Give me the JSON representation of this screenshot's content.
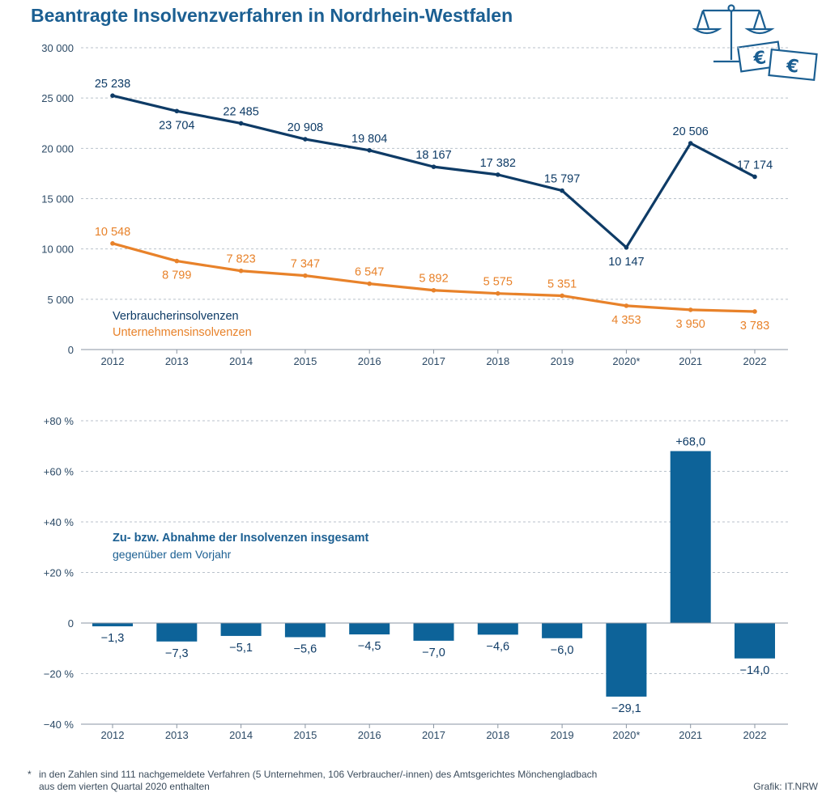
{
  "title": "Beantragte Insolvenzverfahren in Nordrhein-Westfalen",
  "chart_data": [
    {
      "type": "line",
      "x": [
        "2012",
        "2013",
        "2014",
        "2015",
        "2016",
        "2017",
        "2018",
        "2019",
        "2020*",
        "2021",
        "2022"
      ],
      "ylim": [
        0,
        30000
      ],
      "yticks": [
        {
          "value": 0,
          "label": "0"
        },
        {
          "value": 5000,
          "label": "5 000"
        },
        {
          "value": 10000,
          "label": "10 000"
        },
        {
          "value": 15000,
          "label": "15 000"
        },
        {
          "value": 20000,
          "label": "20 000"
        },
        {
          "value": 25000,
          "label": "25 000"
        },
        {
          "value": 30000,
          "label": "30 000"
        }
      ],
      "grid": true,
      "legend": "bottom-left",
      "series": [
        {
          "name": "Verbraucherinsolvenzen",
          "color": "#0e3b66",
          "values": [
            25238,
            23704,
            22485,
            20908,
            19804,
            18167,
            17382,
            15797,
            10147,
            20506,
            17174
          ],
          "labels": [
            "25 238",
            "23 704",
            "22 485",
            "20 908",
            "19 804",
            "18 167",
            "17 382",
            "15 797",
            "10 147",
            "20 506",
            "17 174"
          ]
        },
        {
          "name": "Unternehmensinsolvenzen",
          "color": "#e8822a",
          "values": [
            10548,
            8799,
            7823,
            7347,
            6547,
            5892,
            5575,
            5351,
            4353,
            3950,
            3783
          ],
          "labels": [
            "10 548",
            "8 799",
            "7 823",
            "7 347",
            "6 547",
            "5 892",
            "5 575",
            "5 351",
            "4 353",
            "3 950",
            "3 783"
          ]
        }
      ]
    },
    {
      "type": "bar",
      "title": "Zu- bzw. Abnahme der Insolvenzen insgesamt",
      "subtitle": "gegenüber dem Vorjahr",
      "categories": [
        "2012",
        "2013",
        "2014",
        "2015",
        "2016",
        "2017",
        "2018",
        "2019",
        "2020*",
        "2021",
        "2022"
      ],
      "color": "#0d6399",
      "ylim": [
        -40,
        80
      ],
      "yticks": [
        {
          "value": -40,
          "label": "−40 %"
        },
        {
          "value": -20,
          "label": "−20 %"
        },
        {
          "value": 0,
          "label": "0"
        },
        {
          "value": 20,
          "label": "+20 %"
        },
        {
          "value": 40,
          "label": "+40 %"
        },
        {
          "value": 60,
          "label": "+60 %"
        },
        {
          "value": 80,
          "label": "+80 %"
        }
      ],
      "grid": true,
      "values": [
        -1.3,
        -7.3,
        -5.1,
        -5.6,
        -4.5,
        -7.0,
        -4.6,
        -6.0,
        -29.1,
        68.0,
        -14.0
      ],
      "labels": [
        "−1,3",
        "−7,3",
        "−5,1",
        "−5,6",
        "−4,5",
        "−7,0",
        "−4,6",
        "−6,0",
        "−29,1",
        "+68,0",
        "−14,0"
      ]
    }
  ],
  "icons": [
    "scales-icon",
    "euro-banknote-icon"
  ],
  "footnote": {
    "mark": "*",
    "line1": "in den Zahlen sind 111 nachgemeldete Verfahren (5 Unternehmen, 106 Verbraucher/-innen) des Amtsgerichtes Mönchengladbach",
    "line2": "aus dem vierten Quartal 2020 enthalten"
  },
  "credit": "Grafik: IT.NRW"
}
